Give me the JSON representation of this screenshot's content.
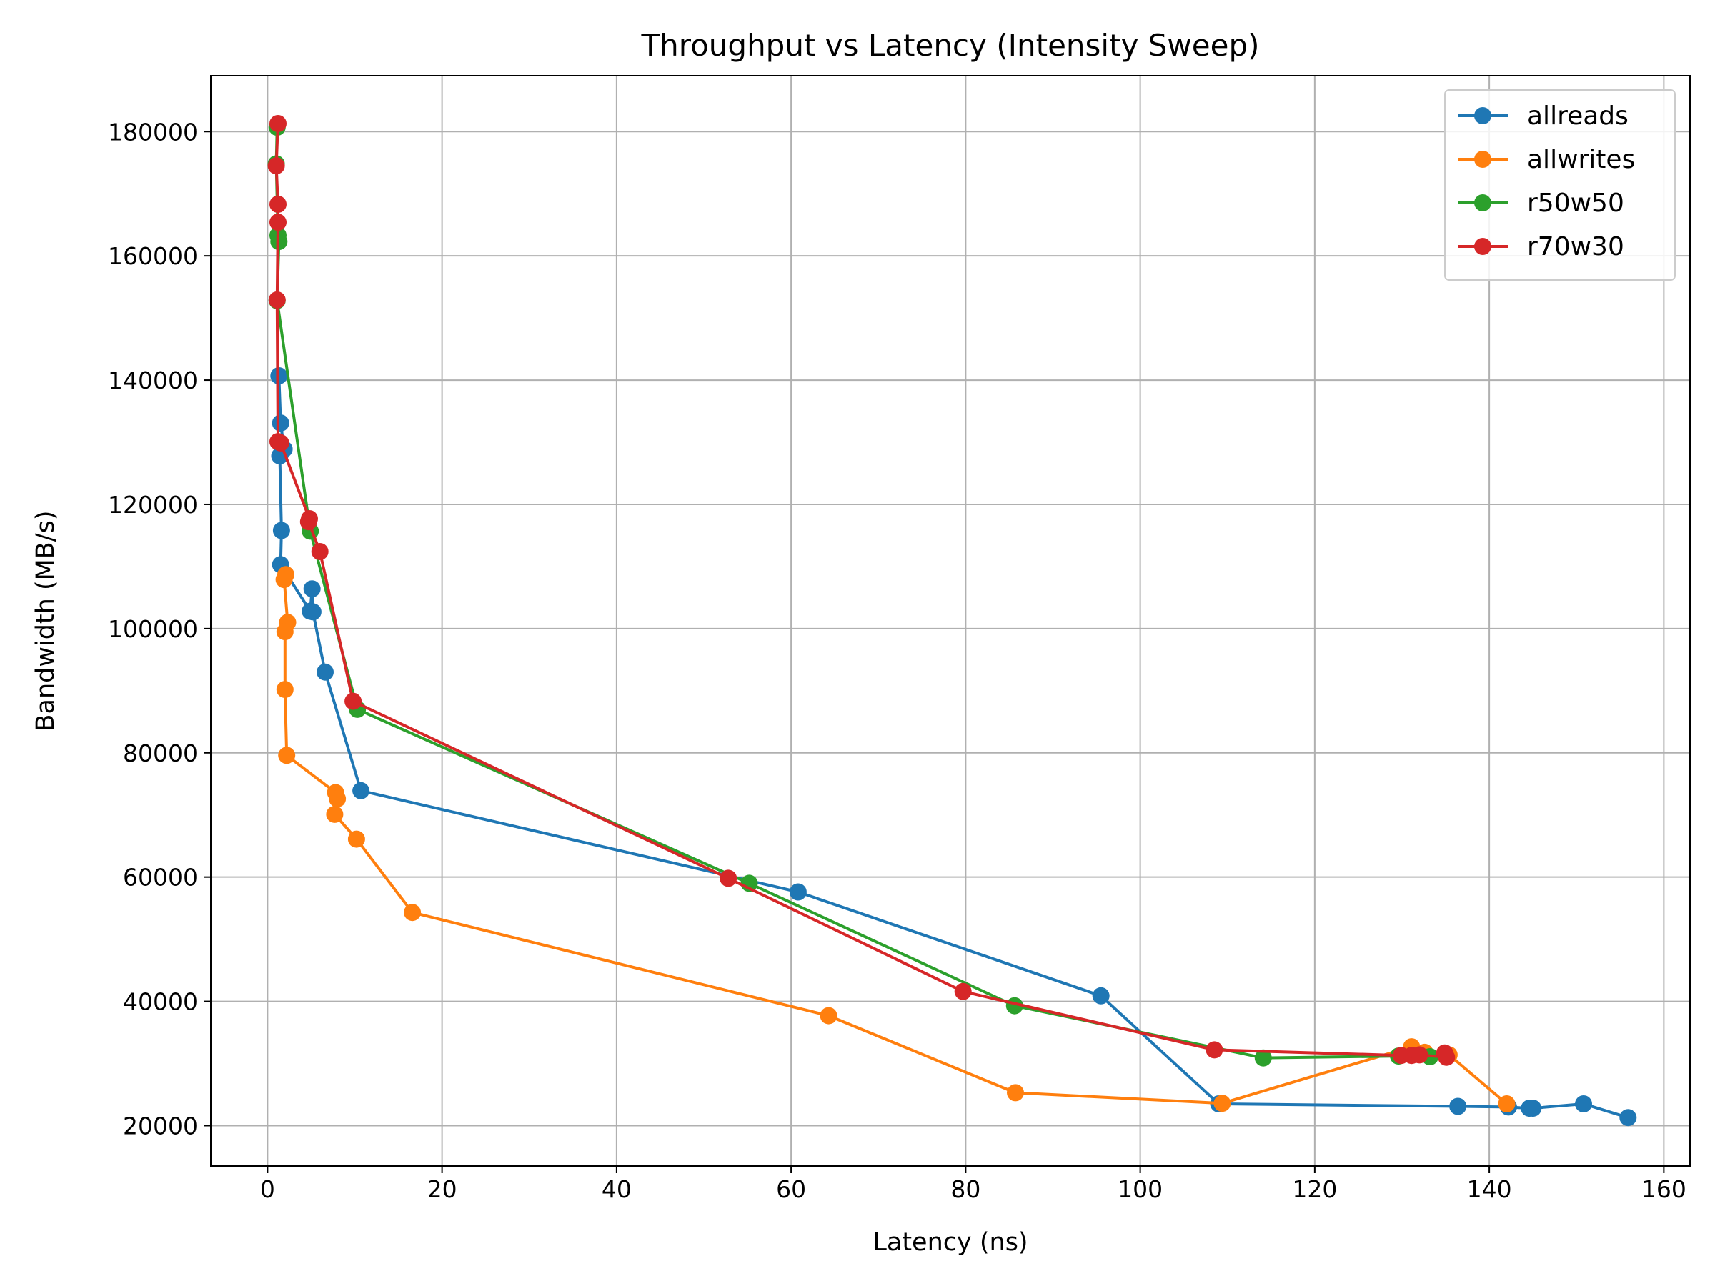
{
  "chart_data": {
    "type": "line",
    "title": "Throughput vs Latency (Intensity Sweep)",
    "xlabel": "Latency (ns)",
    "ylabel": "Bandwidth (MB/s)",
    "xlim": [
      -6.5,
      163
    ],
    "ylim": [
      13500,
      189000
    ],
    "xticks": [
      0,
      20,
      40,
      60,
      80,
      100,
      120,
      140,
      160
    ],
    "yticks": [
      20000,
      40000,
      60000,
      80000,
      100000,
      120000,
      140000,
      160000,
      180000
    ],
    "grid": true,
    "legend_position": "top-right",
    "series": [
      {
        "name": "allreads",
        "color": "#1f77b4",
        "points": [
          [
            1.3,
            140700
          ],
          [
            1.5,
            133100
          ],
          [
            1.9,
            128900
          ],
          [
            1.4,
            127800
          ],
          [
            1.6,
            115800
          ],
          [
            1.5,
            110300
          ],
          [
            4.9,
            102800
          ],
          [
            5.1,
            106400
          ],
          [
            5.2,
            102700
          ],
          [
            6.6,
            93000
          ],
          [
            10.7,
            73900
          ],
          [
            60.8,
            57600
          ],
          [
            95.5,
            40900
          ],
          [
            109.0,
            23500
          ],
          [
            136.4,
            23100
          ],
          [
            142.2,
            23000
          ],
          [
            144.6,
            22800
          ],
          [
            145.0,
            22800
          ],
          [
            150.8,
            23500
          ],
          [
            155.9,
            21300
          ]
        ]
      },
      {
        "name": "allwrites",
        "color": "#ff7f0e",
        "points": [
          [
            2.1,
            108700
          ],
          [
            1.9,
            107900
          ],
          [
            2.3,
            101000
          ],
          [
            2.0,
            99500
          ],
          [
            2.0,
            90200
          ],
          [
            2.2,
            79600
          ],
          [
            7.8,
            73600
          ],
          [
            8.0,
            72600
          ],
          [
            7.7,
            70100
          ],
          [
            10.2,
            66100
          ],
          [
            16.6,
            54300
          ],
          [
            64.3,
            37700
          ],
          [
            85.7,
            25300
          ],
          [
            109.4,
            23600
          ],
          [
            131.1,
            32700
          ],
          [
            132.6,
            31800
          ],
          [
            135.4,
            31400
          ],
          [
            142.0,
            23500
          ]
        ]
      },
      {
        "name": "r50w50",
        "color": "#2ca02c",
        "points": [
          [
            1.1,
            180700
          ],
          [
            1.0,
            174800
          ],
          [
            1.2,
            163300
          ],
          [
            1.3,
            162300
          ],
          [
            1.1,
            152800
          ],
          [
            4.9,
            115700
          ],
          [
            10.3,
            87000
          ],
          [
            55.2,
            59000
          ],
          [
            85.6,
            39300
          ],
          [
            114.1,
            30900
          ],
          [
            129.6,
            31200
          ],
          [
            133.2,
            31100
          ]
        ]
      },
      {
        "name": "r70w30",
        "color": "#d62728",
        "points": [
          [
            1.2,
            181300
          ],
          [
            1.0,
            174500
          ],
          [
            1.2,
            168300
          ],
          [
            1.2,
            165400
          ],
          [
            1.1,
            152900
          ],
          [
            1.2,
            130100
          ],
          [
            1.5,
            129900
          ],
          [
            4.8,
            117700
          ],
          [
            4.7,
            117200
          ],
          [
            6.0,
            112400
          ],
          [
            9.8,
            88300
          ],
          [
            52.8,
            59800
          ],
          [
            79.7,
            41600
          ],
          [
            108.5,
            32200
          ],
          [
            129.9,
            31300
          ],
          [
            131.1,
            31300
          ],
          [
            132.0,
            31400
          ],
          [
            135.1,
            31000
          ],
          [
            134.9,
            31700
          ]
        ]
      }
    ]
  }
}
